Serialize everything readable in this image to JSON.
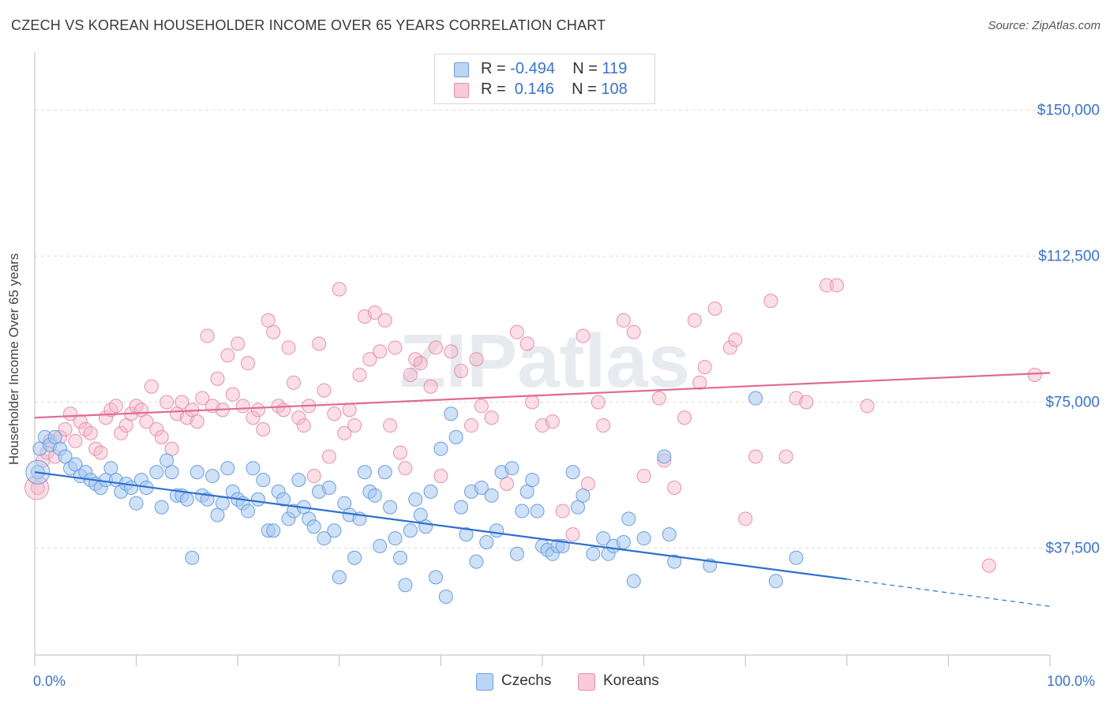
{
  "title": "CZECH VS KOREAN HOUSEHOLDER INCOME OVER 65 YEARS CORRELATION CHART",
  "source": "Source: ZipAtlas.com",
  "watermark": "ZIPatlas",
  "legend": {
    "czech": {
      "r_label": "R = ",
      "r_value": "-0.494",
      "n_label": "N = ",
      "n_value": "119",
      "color": "#a9c8ef"
    },
    "korean": {
      "r_label": "R = ",
      "r_value": " 0.146",
      "n_label": "N = ",
      "n_value": "108",
      "color": "#f5b8ca"
    }
  },
  "bottom_legend": {
    "czechs": "Czechs",
    "koreans": "Koreans"
  },
  "x_tick_labels": {
    "left": "0.0%",
    "right": "100.0%"
  },
  "chart_data": {
    "type": "scatter",
    "title": "CZECH VS KOREAN HOUSEHOLDER INCOME OVER 65 YEARS CORRELATION CHART",
    "xlabel": "",
    "ylabel": "Householder Income Over 65 years",
    "xlim": [
      0,
      100
    ],
    "ylim": [
      10000,
      162500
    ],
    "y_ticks": [
      37500,
      75000,
      112500,
      150000
    ],
    "y_tick_labels": [
      "$37,500",
      "$75,000",
      "$112,500",
      "$150,000"
    ],
    "grid": true,
    "colors": {
      "czech": "#5b93d9",
      "korean": "#e87fa2",
      "czech_line": "#2f6fcf",
      "korean_line": "#e06a92"
    },
    "series": [
      {
        "name": "Czechs",
        "trend": {
          "x": [
            0,
            80
          ],
          "y": [
            57000,
            29500
          ],
          "dashed_to": [
            100,
            22500
          ]
        },
        "points": [
          [
            0.3,
            57
          ],
          [
            0.5,
            63
          ],
          [
            1.0,
            66
          ],
          [
            1.5,
            64
          ],
          [
            2.0,
            66
          ],
          [
            2.5,
            63
          ],
          [
            3.0,
            61
          ],
          [
            3.5,
            58
          ],
          [
            4.0,
            59
          ],
          [
            4.5,
            56
          ],
          [
            5.0,
            57
          ],
          [
            5.5,
            55
          ],
          [
            6.0,
            54
          ],
          [
            6.5,
            53
          ],
          [
            7.0,
            55
          ],
          [
            7.5,
            58
          ],
          [
            8.0,
            55
          ],
          [
            8.5,
            52
          ],
          [
            9.0,
            54
          ],
          [
            9.5,
            53
          ],
          [
            10.0,
            49
          ],
          [
            10.5,
            55
          ],
          [
            11.0,
            53
          ],
          [
            12.0,
            57
          ],
          [
            12.5,
            48
          ],
          [
            13.0,
            60
          ],
          [
            13.5,
            57
          ],
          [
            14.0,
            51
          ],
          [
            14.5,
            51
          ],
          [
            15.0,
            50
          ],
          [
            15.5,
            35
          ],
          [
            16.0,
            57
          ],
          [
            16.5,
            51
          ],
          [
            17.0,
            50
          ],
          [
            17.5,
            56
          ],
          [
            18.0,
            46
          ],
          [
            18.5,
            49
          ],
          [
            19.0,
            58
          ],
          [
            19.5,
            52
          ],
          [
            20.0,
            50
          ],
          [
            20.5,
            49
          ],
          [
            21.0,
            47
          ],
          [
            21.5,
            58
          ],
          [
            22.0,
            50
          ],
          [
            22.5,
            55
          ],
          [
            23.0,
            42
          ],
          [
            23.5,
            42
          ],
          [
            24.0,
            52
          ],
          [
            24.5,
            50
          ],
          [
            25.0,
            45
          ],
          [
            25.5,
            47
          ],
          [
            26.0,
            55
          ],
          [
            26.5,
            48
          ],
          [
            27.0,
            45
          ],
          [
            27.5,
            43
          ],
          [
            28.0,
            52
          ],
          [
            28.5,
            40
          ],
          [
            29.0,
            53
          ],
          [
            29.5,
            42
          ],
          [
            30.0,
            30
          ],
          [
            30.5,
            49
          ],
          [
            31.0,
            46
          ],
          [
            31.5,
            35
          ],
          [
            32.0,
            45
          ],
          [
            32.5,
            57
          ],
          [
            33.0,
            52
          ],
          [
            33.5,
            51
          ],
          [
            34.0,
            38
          ],
          [
            34.5,
            57
          ],
          [
            35.0,
            48
          ],
          [
            35.5,
            40
          ],
          [
            36.0,
            35
          ],
          [
            36.5,
            28
          ],
          [
            37.0,
            42
          ],
          [
            37.5,
            50
          ],
          [
            38.0,
            46
          ],
          [
            38.5,
            43
          ],
          [
            39.0,
            52
          ],
          [
            39.5,
            30
          ],
          [
            40.0,
            63
          ],
          [
            40.5,
            25
          ],
          [
            41.0,
            72
          ],
          [
            41.5,
            66
          ],
          [
            42.0,
            48
          ],
          [
            42.5,
            41
          ],
          [
            43.0,
            52
          ],
          [
            43.5,
            34
          ],
          [
            44.0,
            53
          ],
          [
            44.5,
            39
          ],
          [
            45.0,
            51
          ],
          [
            45.5,
            42
          ],
          [
            46.0,
            57
          ],
          [
            47.0,
            58
          ],
          [
            47.5,
            36
          ],
          [
            48.0,
            47
          ],
          [
            48.5,
            52
          ],
          [
            49.0,
            55
          ],
          [
            49.5,
            47
          ],
          [
            50.0,
            38
          ],
          [
            50.5,
            37
          ],
          [
            51.0,
            36
          ],
          [
            51.5,
            38
          ],
          [
            52.0,
            38
          ],
          [
            53.0,
            57
          ],
          [
            53.5,
            48
          ],
          [
            54.0,
            51
          ],
          [
            55.0,
            36
          ],
          [
            56.0,
            40
          ],
          [
            56.5,
            36
          ],
          [
            57.0,
            38
          ],
          [
            58.0,
            39
          ],
          [
            58.5,
            45
          ],
          [
            59.0,
            29
          ],
          [
            60.0,
            40
          ],
          [
            62.0,
            61
          ],
          [
            62.5,
            41
          ],
          [
            63.0,
            34
          ],
          [
            66.5,
            33
          ],
          [
            71.0,
            76
          ],
          [
            73.0,
            29
          ],
          [
            75.0,
            35
          ]
        ]
      },
      {
        "name": "Koreans",
        "trend": {
          "x": [
            0,
            100
          ],
          "y": [
            71000,
            82500
          ]
        },
        "points": [
          [
            0.3,
            53
          ],
          [
            0.8,
            60
          ],
          [
            1.2,
            62
          ],
          [
            1.5,
            65
          ],
          [
            2.0,
            61
          ],
          [
            2.5,
            66
          ],
          [
            3.0,
            68
          ],
          [
            3.5,
            72
          ],
          [
            4.0,
            65
          ],
          [
            4.5,
            70
          ],
          [
            5.0,
            68
          ],
          [
            5.5,
            67
          ],
          [
            6.0,
            63
          ],
          [
            6.5,
            62
          ],
          [
            7.0,
            71
          ],
          [
            7.5,
            73
          ],
          [
            8.0,
            74
          ],
          [
            8.5,
            67
          ],
          [
            9.0,
            69
          ],
          [
            9.5,
            72
          ],
          [
            10.0,
            74
          ],
          [
            10.5,
            73
          ],
          [
            11.0,
            70
          ],
          [
            11.5,
            79
          ],
          [
            12.0,
            68
          ],
          [
            12.5,
            66
          ],
          [
            13.0,
            75
          ],
          [
            13.5,
            63
          ],
          [
            14.0,
            72
          ],
          [
            14.5,
            75
          ],
          [
            15.0,
            71
          ],
          [
            15.5,
            73
          ],
          [
            16.0,
            70
          ],
          [
            16.5,
            76
          ],
          [
            17.0,
            92
          ],
          [
            17.5,
            74
          ],
          [
            18.0,
            81
          ],
          [
            18.5,
            73
          ],
          [
            19.0,
            87
          ],
          [
            19.5,
            77
          ],
          [
            20.0,
            90
          ],
          [
            20.5,
            74
          ],
          [
            21.0,
            85
          ],
          [
            21.5,
            71
          ],
          [
            22.0,
            73
          ],
          [
            22.5,
            68
          ],
          [
            23.0,
            96
          ],
          [
            23.5,
            93
          ],
          [
            24.0,
            74
          ],
          [
            24.5,
            73
          ],
          [
            25.0,
            89
          ],
          [
            25.5,
            80
          ],
          [
            26.0,
            71
          ],
          [
            26.5,
            69
          ],
          [
            27.0,
            74
          ],
          [
            27.5,
            56
          ],
          [
            28.0,
            90
          ],
          [
            28.5,
            78
          ],
          [
            29.0,
            61
          ],
          [
            29.5,
            72
          ],
          [
            30.0,
            104
          ],
          [
            30.5,
            67
          ],
          [
            31.0,
            73
          ],
          [
            31.5,
            69
          ],
          [
            32.0,
            82
          ],
          [
            32.5,
            97
          ],
          [
            33.0,
            86
          ],
          [
            33.5,
            98
          ],
          [
            34.0,
            88
          ],
          [
            34.5,
            96
          ],
          [
            35.0,
            69
          ],
          [
            35.5,
            89
          ],
          [
            36.0,
            62
          ],
          [
            36.5,
            58
          ],
          [
            37.0,
            82
          ],
          [
            37.5,
            86
          ],
          [
            38.0,
            85
          ],
          [
            39.0,
            79
          ],
          [
            39.5,
            89
          ],
          [
            40.0,
            56
          ],
          [
            41.0,
            88
          ],
          [
            42.0,
            83
          ],
          [
            43.0,
            69
          ],
          [
            43.5,
            86
          ],
          [
            44.0,
            74
          ],
          [
            45.0,
            71
          ],
          [
            46.5,
            54
          ],
          [
            47.5,
            93
          ],
          [
            48.5,
            90
          ],
          [
            49.0,
            75
          ],
          [
            50.0,
            69
          ],
          [
            51.0,
            70
          ],
          [
            52.0,
            47
          ],
          [
            53.0,
            41
          ],
          [
            54.0,
            92
          ],
          [
            54.5,
            54
          ],
          [
            55.5,
            75
          ],
          [
            56.0,
            69
          ],
          [
            58.0,
            96
          ],
          [
            59.0,
            93
          ],
          [
            60.0,
            56
          ],
          [
            61.5,
            76
          ],
          [
            62.0,
            60
          ],
          [
            63.0,
            53
          ],
          [
            64.0,
            71
          ],
          [
            65.0,
            96
          ],
          [
            65.5,
            80
          ],
          [
            66.0,
            84
          ],
          [
            67.0,
            99
          ],
          [
            68.5,
            89
          ],
          [
            69.0,
            91
          ],
          [
            70.0,
            45
          ],
          [
            71.0,
            61
          ],
          [
            72.5,
            101
          ],
          [
            74.0,
            61
          ],
          [
            75.0,
            76
          ],
          [
            76.0,
            75
          ],
          [
            78.0,
            105
          ],
          [
            79.0,
            105
          ],
          [
            82.0,
            74
          ],
          [
            94.0,
            33
          ],
          [
            98.5,
            82
          ]
        ]
      }
    ]
  }
}
